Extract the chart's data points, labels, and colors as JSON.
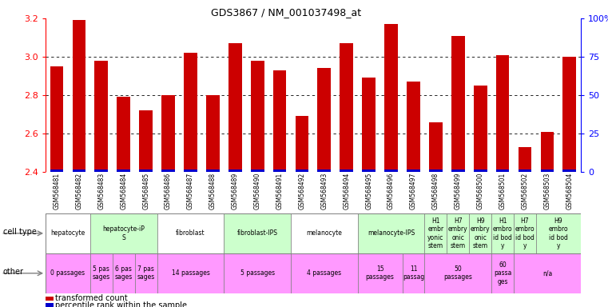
{
  "title": "GDS3867 / NM_001037498_at",
  "samples": [
    "GSM568481",
    "GSM568482",
    "GSM568483",
    "GSM568484",
    "GSM568485",
    "GSM568486",
    "GSM568487",
    "GSM568488",
    "GSM568489",
    "GSM568490",
    "GSM568491",
    "GSM568492",
    "GSM568493",
    "GSM568494",
    "GSM568495",
    "GSM568496",
    "GSM568497",
    "GSM568498",
    "GSM568499",
    "GSM568500",
    "GSM568501",
    "GSM568502",
    "GSM568503",
    "GSM568504"
  ],
  "values": [
    2.95,
    3.19,
    2.98,
    2.79,
    2.72,
    2.8,
    3.02,
    2.8,
    3.07,
    2.98,
    2.93,
    2.69,
    2.94,
    3.07,
    2.89,
    3.17,
    2.87,
    2.66,
    3.11,
    2.85,
    3.01,
    2.53,
    2.61,
    3.0
  ],
  "ylim_left": [
    2.4,
    3.2
  ],
  "ylim_right": [
    0,
    100
  ],
  "right_ticks": [
    0,
    25,
    50,
    75,
    100
  ],
  "right_tick_labels": [
    "0",
    "25",
    "50",
    "75",
    "100%"
  ],
  "left_ticks": [
    2.4,
    2.6,
    2.8,
    3.0,
    3.2
  ],
  "bar_color": "#cc0000",
  "percentile_color": "#0000cc",
  "cell_type_groups": [
    {
      "label": "hepatocyte",
      "start": 0,
      "end": 2,
      "color": "#ffffff"
    },
    {
      "label": "hepatocyte-iP\nS",
      "start": 2,
      "end": 5,
      "color": "#ccffcc"
    },
    {
      "label": "fibroblast",
      "start": 5,
      "end": 8,
      "color": "#ffffff"
    },
    {
      "label": "fibroblast-IPS",
      "start": 8,
      "end": 11,
      "color": "#ccffcc"
    },
    {
      "label": "melanocyte",
      "start": 11,
      "end": 14,
      "color": "#ffffff"
    },
    {
      "label": "melanocyte-IPS",
      "start": 14,
      "end": 17,
      "color": "#ccffcc"
    },
    {
      "label": "H1\nembr\nyonic\nstem",
      "start": 17,
      "end": 18,
      "color": "#ccffcc"
    },
    {
      "label": "H7\nembry\nonic\nstem",
      "start": 18,
      "end": 19,
      "color": "#ccffcc"
    },
    {
      "label": "H9\nembry\nonic\nstem",
      "start": 19,
      "end": 20,
      "color": "#ccffcc"
    },
    {
      "label": "H1\nembro\nid bod\ny",
      "start": 20,
      "end": 21,
      "color": "#ccffcc"
    },
    {
      "label": "H7\nembro\nid bod\ny",
      "start": 21,
      "end": 22,
      "color": "#ccffcc"
    },
    {
      "label": "H9\nembro\nid bod\ny",
      "start": 22,
      "end": 24,
      "color": "#ccffcc"
    }
  ],
  "other_groups": [
    {
      "label": "0 passages",
      "start": 0,
      "end": 2,
      "color": "#ff99ff"
    },
    {
      "label": "5 pas\nsages",
      "start": 2,
      "end": 3,
      "color": "#ff99ff"
    },
    {
      "label": "6 pas\nsages",
      "start": 3,
      "end": 4,
      "color": "#ff99ff"
    },
    {
      "label": "7 pas\nsages",
      "start": 4,
      "end": 5,
      "color": "#ff99ff"
    },
    {
      "label": "14 passages",
      "start": 5,
      "end": 8,
      "color": "#ff99ff"
    },
    {
      "label": "5 passages",
      "start": 8,
      "end": 11,
      "color": "#ff99ff"
    },
    {
      "label": "4 passages",
      "start": 11,
      "end": 14,
      "color": "#ff99ff"
    },
    {
      "label": "15\npassages",
      "start": 14,
      "end": 16,
      "color": "#ff99ff"
    },
    {
      "label": "11\npassag",
      "start": 16,
      "end": 17,
      "color": "#ff99ff"
    },
    {
      "label": "50\npassages",
      "start": 17,
      "end": 20,
      "color": "#ff99ff"
    },
    {
      "label": "60\npassa\nges",
      "start": 20,
      "end": 21,
      "color": "#ff99ff"
    },
    {
      "label": "n/a",
      "start": 21,
      "end": 24,
      "color": "#ff99ff"
    }
  ],
  "legend": [
    {
      "color": "#cc0000",
      "label": "transformed count"
    },
    {
      "color": "#0000cc",
      "label": "percentile rank within the sample"
    }
  ],
  "bg_color": "#ffffff",
  "label_bg": "#cccccc",
  "grid_lines": [
    2.6,
    2.8,
    3.0
  ]
}
